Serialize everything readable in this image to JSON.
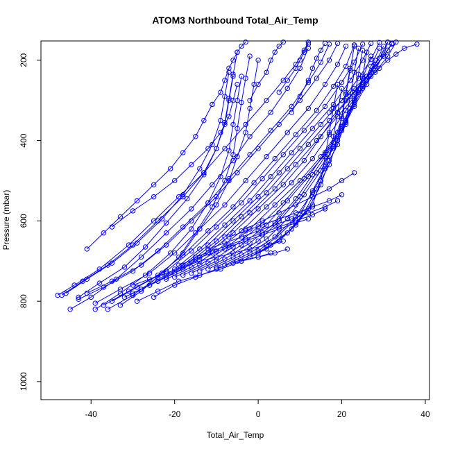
{
  "chart_data": {
    "type": "line",
    "title": "ATOM3 Northbound Total_Air_Temp",
    "xlabel": "Total_Air_Temp",
    "ylabel": "Pressure (mbar)",
    "xlim": [
      -52,
      41
    ],
    "ylim": [
      1045,
      152
    ],
    "y_axis_inverted": true,
    "x_ticks": [
      -40,
      -20,
      0,
      20,
      40
    ],
    "y_ticks": [
      200,
      400,
      600,
      800,
      1000
    ],
    "grid": false,
    "legend": "none",
    "marker": "open-circle",
    "series_color": "#0000ff",
    "series": [
      {
        "x": [
          -48,
          -44,
          -38,
          -31,
          -25,
          -19,
          -13,
          -8,
          -3,
          2,
          6,
          9,
          11,
          12
        ],
        "y": [
          785,
          760,
          720,
          660,
          600,
          540,
          480,
          420,
          360,
          300,
          250,
          210,
          175,
          155
        ]
      },
      {
        "x": [
          -45,
          -40,
          -34,
          -28,
          -22,
          -16,
          -11,
          -6,
          -2,
          3,
          7,
          10,
          12
        ],
        "y": [
          820,
          790,
          745,
          690,
          630,
          570,
          510,
          450,
          390,
          330,
          270,
          220,
          170
        ]
      },
      {
        "x": [
          -43,
          -37,
          -30,
          -24,
          -18,
          -12,
          -7,
          -2,
          3,
          8,
          12,
          15,
          17
        ],
        "y": [
          795,
          765,
          725,
          675,
          615,
          555,
          495,
          435,
          375,
          315,
          255,
          205,
          160
        ]
      },
      {
        "x": [
          -41,
          -35,
          -28,
          -22,
          -16,
          -10,
          -5,
          0,
          5,
          10,
          14,
          17,
          19
        ],
        "y": [
          780,
          750,
          710,
          660,
          600,
          540,
          480,
          420,
          360,
          300,
          245,
          200,
          158
        ]
      },
      {
        "x": [
          -39,
          -33,
          -26,
          -20,
          -14,
          -8,
          -3,
          2,
          7,
          12,
          16,
          19,
          21
        ],
        "y": [
          805,
          770,
          730,
          680,
          620,
          560,
          500,
          440,
          380,
          320,
          260,
          210,
          165
        ]
      },
      {
        "x": [
          -37,
          -31,
          -24,
          -18,
          -12,
          -6,
          -1,
          4,
          9,
          14,
          18,
          21,
          23
        ],
        "y": [
          810,
          775,
          735,
          685,
          625,
          565,
          505,
          445,
          385,
          325,
          265,
          215,
          162
        ]
      },
      {
        "x": [
          -35,
          -29,
          -22,
          -16,
          -10,
          -4,
          1,
          6,
          11,
          16,
          20,
          23,
          25
        ],
        "y": [
          800,
          765,
          725,
          675,
          615,
          555,
          495,
          435,
          375,
          315,
          255,
          205,
          160
        ]
      },
      {
        "x": [
          -32,
          -26,
          -20,
          -14,
          -8,
          -2,
          3,
          8,
          13,
          18,
          22,
          25,
          27
        ],
        "y": [
          790,
          760,
          720,
          670,
          610,
          550,
          490,
          430,
          370,
          310,
          250,
          200,
          158
        ]
      },
      {
        "x": [
          -30,
          -24,
          -18,
          -12,
          -6,
          0,
          5,
          10,
          15,
          20,
          24,
          27,
          29
        ],
        "y": [
          780,
          750,
          710,
          660,
          600,
          540,
          480,
          420,
          360,
          300,
          245,
          198,
          156
        ]
      },
      {
        "x": [
          -28,
          -22,
          -16,
          -10,
          -4,
          2,
          7,
          12,
          17,
          22,
          26,
          29,
          31
        ],
        "y": [
          770,
          740,
          700,
          650,
          590,
          530,
          470,
          410,
          350,
          290,
          240,
          195,
          155
        ]
      },
      {
        "x": [
          -26,
          -20,
          -14,
          -8,
          -2,
          4,
          9,
          14,
          19,
          24,
          28,
          31,
          33
        ],
        "y": [
          760,
          730,
          690,
          640,
          580,
          520,
          460,
          400,
          340,
          280,
          230,
          190,
          155
        ]
      },
      {
        "x": [
          -24,
          -18,
          -12,
          -6,
          0,
          6,
          11,
          15,
          19,
          23,
          27,
          30,
          32
        ],
        "y": [
          750,
          720,
          680,
          630,
          570,
          510,
          450,
          390,
          330,
          280,
          230,
          190,
          158
        ]
      },
      {
        "x": [
          -22,
          -16,
          -10,
          -4,
          2,
          8,
          13,
          17,
          21,
          25,
          28,
          30,
          31
        ],
        "y": [
          745,
          715,
          675,
          625,
          565,
          505,
          445,
          385,
          325,
          270,
          225,
          185,
          155
        ]
      },
      {
        "x": [
          -20,
          -14,
          -8,
          -2,
          4,
          10,
          15,
          19,
          22,
          25,
          27,
          29
        ],
        "y": [
          740,
          710,
          670,
          620,
          560,
          500,
          440,
          380,
          320,
          265,
          215,
          170
        ]
      },
      {
        "x": [
          -18,
          -12,
          -6,
          0,
          6,
          11,
          16,
          20,
          23,
          26,
          28,
          30
        ],
        "y": [
          735,
          705,
          665,
          615,
          555,
          495,
          435,
          375,
          315,
          260,
          210,
          165
        ]
      },
      {
        "x": [
          -16,
          -10,
          -4,
          2,
          7,
          12,
          16,
          20,
          23,
          26,
          28
        ],
        "y": [
          730,
          700,
          660,
          610,
          550,
          490,
          430,
          370,
          310,
          250,
          200
        ]
      },
      {
        "x": [
          -14,
          -8,
          -2,
          4,
          9,
          13,
          17,
          20,
          23,
          25,
          27
        ],
        "y": [
          725,
          695,
          655,
          605,
          545,
          485,
          425,
          365,
          305,
          245,
          190
        ]
      },
      {
        "x": [
          -12,
          -6,
          0,
          5,
          10,
          14,
          18,
          21,
          23,
          25,
          26
        ],
        "y": [
          720,
          690,
          650,
          600,
          540,
          480,
          420,
          360,
          300,
          240,
          180
        ]
      },
      {
        "x": [
          -10,
          -4,
          2,
          7,
          11,
          15,
          18,
          21,
          23,
          24,
          25
        ],
        "y": [
          715,
          685,
          645,
          595,
          535,
          475,
          415,
          355,
          295,
          235,
          175
        ]
      },
      {
        "x": [
          -8,
          -2,
          4,
          9,
          13,
          16,
          19,
          21,
          22,
          23,
          24
        ],
        "y": [
          710,
          680,
          640,
          590,
          530,
          470,
          410,
          350,
          290,
          230,
          170
        ]
      },
      {
        "x": [
          -6,
          0,
          5,
          10,
          13,
          16,
          18,
          20,
          21,
          22,
          23
        ],
        "y": [
          705,
          675,
          635,
          585,
          525,
          465,
          405,
          345,
          285,
          225,
          165
        ]
      },
      {
        "x": [
          -4,
          2,
          7,
          11,
          14,
          17,
          19,
          20,
          21,
          22
        ],
        "y": [
          700,
          670,
          630,
          580,
          520,
          460,
          400,
          340,
          280,
          220
        ]
      },
      {
        "x": [
          -2,
          3,
          8,
          12,
          15,
          17,
          18,
          19,
          20
        ],
        "y": [
          690,
          660,
          620,
          570,
          510,
          450,
          390,
          330,
          270
        ]
      },
      {
        "x": [
          0,
          5,
          9,
          13,
          15,
          16,
          17,
          18,
          19
        ],
        "y": [
          680,
          650,
          610,
          560,
          500,
          440,
          380,
          320,
          260
        ]
      },
      {
        "x": [
          -47,
          -42,
          -36,
          -30,
          -24,
          -18,
          -13,
          -10,
          -8,
          -7,
          -6
        ],
        "y": [
          785,
          750,
          710,
          660,
          600,
          540,
          480,
          420,
          360,
          300,
          240
        ]
      },
      {
        "x": [
          -46,
          -41,
          -35,
          -29,
          -23,
          -18,
          -14,
          -11,
          -9,
          -8,
          -7
        ],
        "y": [
          780,
          745,
          705,
          655,
          595,
          535,
          470,
          410,
          350,
          290,
          230
        ]
      },
      {
        "x": [
          -39,
          -33,
          -27,
          -21,
          -16,
          -12,
          -9,
          -7,
          -6,
          -5,
          -4
        ],
        "y": [
          820,
          780,
          735,
          680,
          620,
          555,
          490,
          425,
          360,
          300,
          240
        ]
      },
      {
        "x": [
          -36,
          -30,
          -24,
          -19,
          -15,
          -11,
          -8,
          -6,
          -5,
          -4,
          -3,
          -2
        ],
        "y": [
          820,
          785,
          740,
          690,
          630,
          565,
          500,
          435,
          370,
          305,
          245,
          190
        ]
      },
      {
        "x": [
          -33,
          -28,
          -23,
          -18,
          -14,
          -10,
          -7,
          -5,
          -3,
          -2,
          -1,
          0
        ],
        "y": [
          810,
          775,
          730,
          680,
          620,
          560,
          500,
          440,
          380,
          320,
          260,
          200
        ]
      },
      {
        "x": [
          -43,
          -38,
          -32,
          -27,
          -22,
          -17,
          -13,
          -10,
          -8,
          -7,
          -6,
          -5
        ],
        "y": [
          790,
          755,
          715,
          665,
          605,
          545,
          485,
          420,
          355,
          295,
          235,
          180
        ]
      },
      {
        "x": [
          -35,
          -30,
          -25,
          -20,
          -16,
          -12,
          -9,
          -7,
          -6,
          -5
        ],
        "y": [
          615,
          575,
          540,
          500,
          460,
          420,
          380,
          340,
          300,
          260
        ]
      },
      {
        "x": [
          -41,
          -37,
          -33,
          -29,
          -25,
          -21,
          -18,
          -15,
          -13,
          -11
        ],
        "y": [
          670,
          630,
          590,
          550,
          510,
          470,
          430,
          390,
          350,
          310
        ]
      },
      {
        "x": [
          -11,
          -9,
          -8,
          -7,
          -6,
          -5,
          -4,
          -3
        ],
        "y": [
          310,
          280,
          250,
          220,
          200,
          180,
          165,
          155
        ]
      },
      {
        "x": [
          -2,
          0,
          2,
          3,
          4,
          5,
          6
        ],
        "y": [
          300,
          260,
          230,
          200,
          180,
          165,
          155
        ]
      },
      {
        "x": [
          5,
          7,
          9,
          10,
          11,
          12
        ],
        "y": [
          280,
          250,
          220,
          200,
          180,
          160
        ]
      },
      {
        "x": [
          8,
          10,
          12,
          13,
          14,
          15,
          16
        ],
        "y": [
          330,
          290,
          250,
          220,
          195,
          175,
          158
        ]
      },
      {
        "x": [
          21,
          23,
          25,
          27,
          29,
          31,
          33,
          35,
          38
        ],
        "y": [
          300,
          280,
          260,
          240,
          220,
          200,
          185,
          170,
          160
        ]
      },
      {
        "x": [
          17,
          20,
          23,
          26,
          28,
          30,
          31,
          32
        ],
        "y": [
          330,
          300,
          270,
          240,
          215,
          190,
          175,
          160
        ]
      },
      {
        "x": [
          -25,
          -20,
          -15,
          -10,
          -5,
          0,
          4,
          7
        ],
        "y": [
          790,
          760,
          740,
          720,
          700,
          690,
          680,
          670
        ]
      },
      {
        "x": [
          -29,
          -24,
          -19,
          -14,
          -9,
          -4,
          0,
          3
        ],
        "y": [
          800,
          775,
          750,
          735,
          720,
          700,
          690,
          680
        ]
      },
      {
        "x": [
          -30,
          -26,
          -22,
          -18,
          -14,
          -10,
          -6,
          -2,
          2,
          6
        ],
        "y": [
          760,
          745,
          730,
          715,
          700,
          690,
          680,
          670,
          660,
          650
        ]
      },
      {
        "x": [
          -19,
          -15,
          -11,
          -7,
          -3,
          1,
          5,
          9,
          12
        ],
        "y": [
          710,
          695,
          680,
          665,
          650,
          635,
          620,
          605,
          595
        ]
      },
      {
        "x": [
          -15,
          -11,
          -7,
          -3,
          1,
          5,
          9,
          13,
          16
        ],
        "y": [
          690,
          675,
          660,
          645,
          630,
          615,
          600,
          585,
          570
        ]
      },
      {
        "x": [
          -12,
          -8,
          -4,
          0,
          4,
          8,
          12,
          16,
          19
        ],
        "y": [
          670,
          655,
          640,
          625,
          610,
          595,
          580,
          565,
          550
        ]
      },
      {
        "x": [
          -7,
          -3,
          1,
          5,
          9,
          13,
          17,
          20
        ],
        "y": [
          640,
          625,
          610,
          595,
          580,
          565,
          550,
          535
        ]
      },
      {
        "x": [
          -3,
          1,
          5,
          9,
          13,
          17,
          20,
          23
        ],
        "y": [
          620,
          600,
          580,
          560,
          540,
          520,
          500,
          480
        ]
      }
    ]
  }
}
